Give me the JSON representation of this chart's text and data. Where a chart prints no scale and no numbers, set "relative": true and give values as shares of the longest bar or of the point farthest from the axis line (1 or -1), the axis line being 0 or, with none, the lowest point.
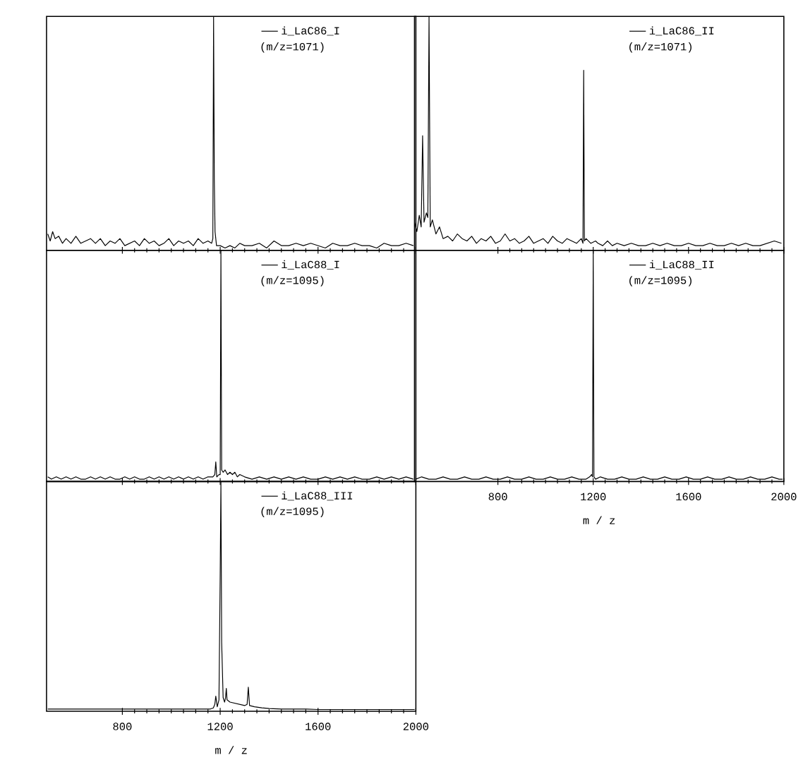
{
  "chart_data": [
    {
      "type": "line",
      "relative": true,
      "xlim": [
        490,
        2000
      ],
      "xticks": [
        800,
        1200,
        1600,
        2000
      ],
      "tick_labels": false,
      "legend": "top right",
      "annotations": [
        "(m/z=1071)"
      ],
      "series": [
        {
          "name": "i_LaC86_I",
          "color": "#000000",
          "x": [
            495,
            505,
            515,
            525,
            540,
            555,
            570,
            590,
            610,
            630,
            650,
            670,
            690,
            710,
            730,
            750,
            770,
            790,
            810,
            830,
            850,
            870,
            890,
            910,
            930,
            950,
            970,
            990,
            1010,
            1030,
            1050,
            1070,
            1090,
            1110,
            1130,
            1150,
            1165,
            1170,
            1173,
            1176,
            1179,
            1185,
            1200,
            1220,
            1240,
            1260,
            1280,
            1300,
            1330,
            1360,
            1390,
            1420,
            1450,
            1480,
            1510,
            1540,
            1570,
            1600,
            1630,
            1660,
            1690,
            1720,
            1750,
            1780,
            1810,
            1840,
            1870,
            1900,
            1930,
            1960,
            1990
          ],
          "values": [
            0.07,
            0.04,
            0.08,
            0.05,
            0.06,
            0.03,
            0.05,
            0.03,
            0.06,
            0.03,
            0.04,
            0.05,
            0.03,
            0.05,
            0.02,
            0.04,
            0.03,
            0.05,
            0.02,
            0.03,
            0.04,
            0.02,
            0.05,
            0.03,
            0.04,
            0.02,
            0.03,
            0.05,
            0.02,
            0.04,
            0.03,
            0.04,
            0.02,
            0.05,
            0.03,
            0.04,
            0.03,
            0.05,
            1.0,
            0.3,
            0.08,
            0.02,
            0.02,
            0.01,
            0.02,
            0.01,
            0.03,
            0.02,
            0.02,
            0.03,
            0.01,
            0.04,
            0.02,
            0.02,
            0.03,
            0.02,
            0.03,
            0.02,
            0.01,
            0.03,
            0.02,
            0.02,
            0.03,
            0.02,
            0.02,
            0.01,
            0.03,
            0.02,
            0.02,
            0.03,
            0.02
          ]
        }
      ]
    },
    {
      "type": "line",
      "relative": true,
      "xlim": [
        450,
        2000
      ],
      "xticks": [
        800,
        1200,
        1600,
        2000
      ],
      "tick_labels": false,
      "legend": "top right",
      "annotations": [
        "(m/z=1071)"
      ],
      "series": [
        {
          "name": "i_LaC86_II",
          "color": "#000000",
          "x": [
            450,
            460,
            470,
            478,
            484,
            490,
            500,
            506,
            511,
            516,
            525,
            540,
            555,
            570,
            590,
            610,
            630,
            650,
            670,
            690,
            710,
            730,
            750,
            770,
            790,
            810,
            830,
            850,
            870,
            890,
            910,
            930,
            950,
            970,
            990,
            1010,
            1030,
            1050,
            1070,
            1090,
            1110,
            1130,
            1150,
            1157,
            1160,
            1163,
            1170,
            1190,
            1210,
            1220,
            1240,
            1260,
            1280,
            1300,
            1330,
            1360,
            1390,
            1420,
            1450,
            1480,
            1510,
            1540,
            1570,
            1600,
            1630,
            1660,
            1690,
            1720,
            1750,
            1780,
            1810,
            1840,
            1870,
            1900,
            1930,
            1960,
            1990
          ],
          "values": [
            0.12,
            0.08,
            0.15,
            0.1,
            0.49,
            0.12,
            0.16,
            0.14,
            1.0,
            0.1,
            0.13,
            0.07,
            0.1,
            0.05,
            0.06,
            0.04,
            0.07,
            0.05,
            0.04,
            0.06,
            0.03,
            0.05,
            0.04,
            0.06,
            0.03,
            0.04,
            0.07,
            0.04,
            0.05,
            0.03,
            0.04,
            0.06,
            0.03,
            0.04,
            0.05,
            0.03,
            0.06,
            0.04,
            0.03,
            0.05,
            0.04,
            0.03,
            0.05,
            0.03,
            0.77,
            0.04,
            0.05,
            0.03,
            0.04,
            0.03,
            0.02,
            0.04,
            0.02,
            0.03,
            0.02,
            0.03,
            0.02,
            0.02,
            0.03,
            0.02,
            0.03,
            0.02,
            0.02,
            0.03,
            0.02,
            0.02,
            0.03,
            0.02,
            0.02,
            0.03,
            0.02,
            0.03,
            0.02,
            0.02,
            0.03,
            0.04,
            0.03
          ]
        }
      ]
    },
    {
      "type": "line",
      "relative": true,
      "xlim": [
        490,
        2000
      ],
      "xticks": [
        800,
        1200,
        1600,
        2000
      ],
      "tick_labels": false,
      "legend": "top right",
      "annotations": [
        "(m/z=1095)"
      ],
      "series": [
        {
          "name": "i_LaC88_I",
          "color": "#000000",
          "x": [
            495,
            510,
            530,
            550,
            570,
            590,
            610,
            630,
            650,
            670,
            690,
            710,
            730,
            750,
            770,
            790,
            810,
            830,
            850,
            870,
            890,
            910,
            930,
            950,
            970,
            990,
            1010,
            1030,
            1050,
            1070,
            1090,
            1110,
            1130,
            1150,
            1170,
            1178,
            1182,
            1186,
            1195,
            1200,
            1203,
            1206,
            1212,
            1220,
            1230,
            1240,
            1250,
            1260,
            1270,
            1280,
            1300,
            1330,
            1360,
            1390,
            1420,
            1450,
            1480,
            1510,
            1540,
            1570,
            1600,
            1630,
            1660,
            1690,
            1720,
            1750,
            1780,
            1810,
            1840,
            1870,
            1900,
            1930,
            1960,
            1990
          ],
          "values": [
            0.02,
            0.01,
            0.02,
            0.01,
            0.02,
            0.01,
            0.02,
            0.01,
            0.01,
            0.02,
            0.01,
            0.02,
            0.01,
            0.02,
            0.01,
            0.01,
            0.02,
            0.01,
            0.02,
            0.01,
            0.01,
            0.02,
            0.01,
            0.02,
            0.01,
            0.02,
            0.01,
            0.02,
            0.01,
            0.02,
            0.01,
            0.02,
            0.01,
            0.02,
            0.02,
            0.03,
            0.085,
            0.02,
            0.03,
            0.03,
            1.0,
            0.05,
            0.04,
            0.05,
            0.03,
            0.04,
            0.03,
            0.04,
            0.02,
            0.03,
            0.02,
            0.01,
            0.02,
            0.01,
            0.02,
            0.01,
            0.02,
            0.01,
            0.02,
            0.01,
            0.01,
            0.02,
            0.01,
            0.02,
            0.01,
            0.02,
            0.01,
            0.01,
            0.02,
            0.01,
            0.02,
            0.01,
            0.02,
            0.01
          ]
        }
      ]
    },
    {
      "type": "line",
      "relative": true,
      "xlim": [
        450,
        2000
      ],
      "xticks": [
        800,
        1200,
        1600,
        2000
      ],
      "tick_labels": "x",
      "xlabel": "m / z",
      "legend": "top right",
      "annotations": [
        "(m/z=1095)"
      ],
      "series": [
        {
          "name": "i_LaC88_II",
          "color": "#000000",
          "x": [
            455,
            480,
            510,
            540,
            570,
            600,
            630,
            660,
            690,
            720,
            750,
            780,
            810,
            840,
            870,
            900,
            930,
            960,
            990,
            1020,
            1050,
            1080,
            1110,
            1140,
            1170,
            1185,
            1193,
            1197,
            1200,
            1203,
            1210,
            1230,
            1260,
            1290,
            1320,
            1350,
            1380,
            1410,
            1440,
            1470,
            1500,
            1530,
            1560,
            1590,
            1620,
            1650,
            1680,
            1710,
            1740,
            1770,
            1800,
            1830,
            1860,
            1890,
            1920,
            1950,
            1980,
            1995
          ],
          "values": [
            0.01,
            0.02,
            0.01,
            0.01,
            0.02,
            0.01,
            0.01,
            0.02,
            0.01,
            0.01,
            0.02,
            0.01,
            0.01,
            0.02,
            0.01,
            0.01,
            0.02,
            0.01,
            0.01,
            0.02,
            0.01,
            0.01,
            0.02,
            0.01,
            0.01,
            0.02,
            0.03,
            0.02,
            1.0,
            0.02,
            0.01,
            0.02,
            0.01,
            0.01,
            0.02,
            0.01,
            0.01,
            0.02,
            0.01,
            0.01,
            0.02,
            0.01,
            0.01,
            0.02,
            0.01,
            0.01,
            0.02,
            0.01,
            0.01,
            0.02,
            0.01,
            0.01,
            0.02,
            0.01,
            0.01,
            0.02,
            0.01,
            0.01
          ]
        }
      ]
    },
    {
      "type": "line",
      "relative": true,
      "xlim": [
        490,
        2000
      ],
      "xticks": [
        800,
        1200,
        1600,
        2000
      ],
      "tick_labels": "x",
      "xlabel": "m / z",
      "legend": "top right",
      "annotations": [
        "(m/z=1095)"
      ],
      "series": [
        {
          "name": "i_LaC88_III",
          "color": "#000000",
          "x": [
            495,
            530,
            570,
            610,
            650,
            690,
            730,
            770,
            810,
            850,
            890,
            930,
            970,
            1010,
            1050,
            1090,
            1130,
            1160,
            1172,
            1178,
            1182,
            1188,
            1195,
            1200,
            1203,
            1206,
            1212,
            1218,
            1222,
            1225,
            1228,
            1240,
            1260,
            1280,
            1300,
            1310,
            1315,
            1320,
            1340,
            1370,
            1400,
            1450,
            1500,
            1550,
            1600,
            1650,
            1700,
            1750,
            1800,
            1850,
            1900,
            1950,
            1995
          ],
          "values": [
            0.01,
            0.01,
            0.01,
            0.01,
            0.01,
            0.01,
            0.01,
            0.01,
            0.01,
            0.01,
            0.01,
            0.01,
            0.01,
            0.01,
            0.01,
            0.01,
            0.01,
            0.01,
            0.015,
            0.03,
            0.066,
            0.02,
            0.05,
            0.6,
            1.0,
            0.3,
            0.06,
            0.04,
            0.06,
            0.1,
            0.05,
            0.04,
            0.035,
            0.03,
            0.025,
            0.03,
            0.105,
            0.025,
            0.02,
            0.015,
            0.012,
            0.01,
            0.01,
            0.01,
            0.008,
            0.008,
            0.008,
            0.008,
            0.008,
            0.008,
            0.008,
            0.008,
            0.008
          ]
        }
      ]
    }
  ]
}
